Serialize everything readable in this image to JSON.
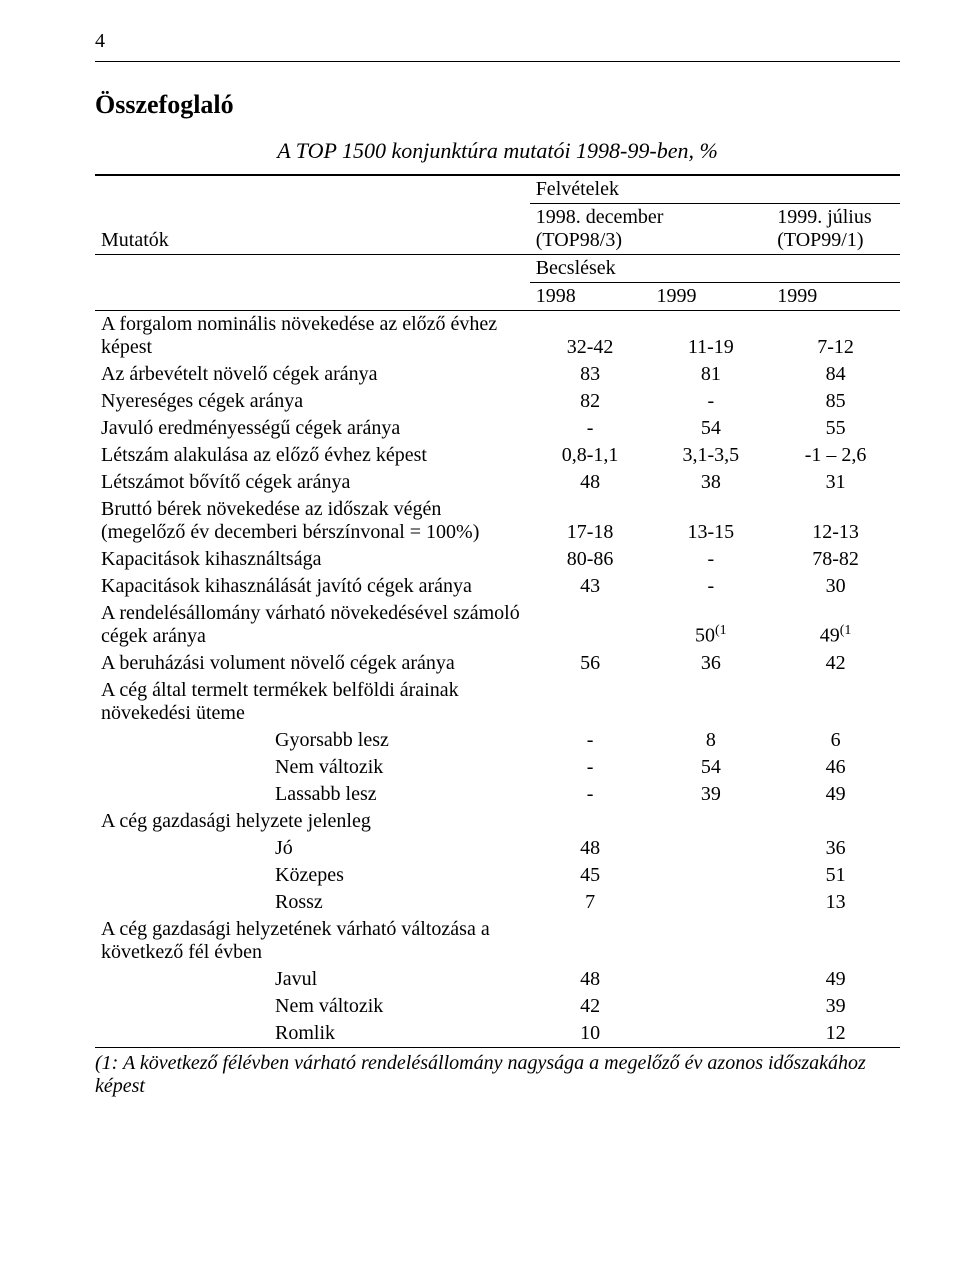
{
  "page_number": "4",
  "title": "Összefoglaló",
  "subtitle": "A TOP 1500 konjunktúra mutatói 1998-99-ben, %",
  "header": {
    "super": "Felvételek",
    "col_label": "Mutatók",
    "col_a_line1": "1998. december",
    "col_a_line2": "(TOP98/3)",
    "col_c_line1": "1999. július",
    "col_c_line2": "(TOP99/1)",
    "sub_super": "Becslések",
    "year_a": "1998",
    "year_b": "1999",
    "year_c": "1999"
  },
  "rows": [
    {
      "label": "A forgalom nominális növekedése az előző évhez képest",
      "a": "32-42",
      "b": "11-19",
      "c": "7-12"
    },
    {
      "label": "Az árbevételt növelő cégek aránya",
      "a": "83",
      "b": "81",
      "c": "84"
    },
    {
      "label": "Nyereséges cégek aránya",
      "a": "82",
      "b": "-",
      "c": "85"
    },
    {
      "label": "Javuló eredményességű cégek aránya",
      "a": "-",
      "b": "54",
      "c": "55"
    },
    {
      "label": "Létszám alakulása az előző évhez képest",
      "a": "0,8-1,1",
      "b": "3,1-3,5",
      "c": "-1 – 2,6"
    },
    {
      "label": "Létszámot bővítő cégek aránya",
      "a": "48",
      "b": "38",
      "c": "31"
    },
    {
      "label": "Bruttó bérek növekedése az időszak végén (megelőző év decemberi bérszínvonal = 100%)",
      "a": "17-18",
      "b": "13-15",
      "c": "12-13"
    },
    {
      "label": "Kapacitások kihasználtsága",
      "a": "80-86",
      "b": "-",
      "c": "78-82"
    },
    {
      "label": "Kapacitások kihasználását javító cégek aránya",
      "a": "43",
      "b": "-",
      "c": "30"
    },
    {
      "label": "A rendelésállomány várható növekedésével számoló cégek aránya",
      "a": "",
      "b": "50",
      "b_sup": "(1",
      "c": "49",
      "c_sup": "(1"
    },
    {
      "label": "A beruházási volument növelő cégek aránya",
      "a": "56",
      "b": "36",
      "c": "42"
    },
    {
      "label": "A cég által termelt termékek belföldi árainak növekedési üteme",
      "a": "",
      "b": "",
      "c": ""
    },
    {
      "label": "Gyorsabb lesz",
      "indent": true,
      "a": "-",
      "b": "8",
      "c": "6"
    },
    {
      "label": "Nem változik",
      "indent": true,
      "a": "-",
      "b": "54",
      "c": "46"
    },
    {
      "label": "Lassabb lesz",
      "indent": true,
      "a": "-",
      "b": "39",
      "c": "49"
    },
    {
      "label": "A cég gazdasági helyzete jelenleg",
      "a": "",
      "b": "",
      "c": ""
    },
    {
      "label": "Jó",
      "indent": true,
      "a": "48",
      "b": "",
      "c": "36"
    },
    {
      "label": "Közepes",
      "indent": true,
      "a": "45",
      "b": "",
      "c": "51"
    },
    {
      "label": "Rossz",
      "indent": true,
      "a": "7",
      "b": "",
      "c": "13"
    },
    {
      "label": "A cég gazdasági helyzetének várható változása a következő fél évben",
      "a": "",
      "b": "",
      "c": ""
    },
    {
      "label": "Javul",
      "indent": true,
      "a": "48",
      "b": "",
      "c": "49"
    },
    {
      "label": "Nem változik",
      "indent": true,
      "a": "42",
      "b": "",
      "c": "39"
    },
    {
      "label": "Romlik",
      "indent": true,
      "a": "10",
      "b": "",
      "c": "12"
    }
  ],
  "footnote": "(1: A következő félévben várható rendelésállomány nagysága a megelőző év azonos időszakához képest"
}
